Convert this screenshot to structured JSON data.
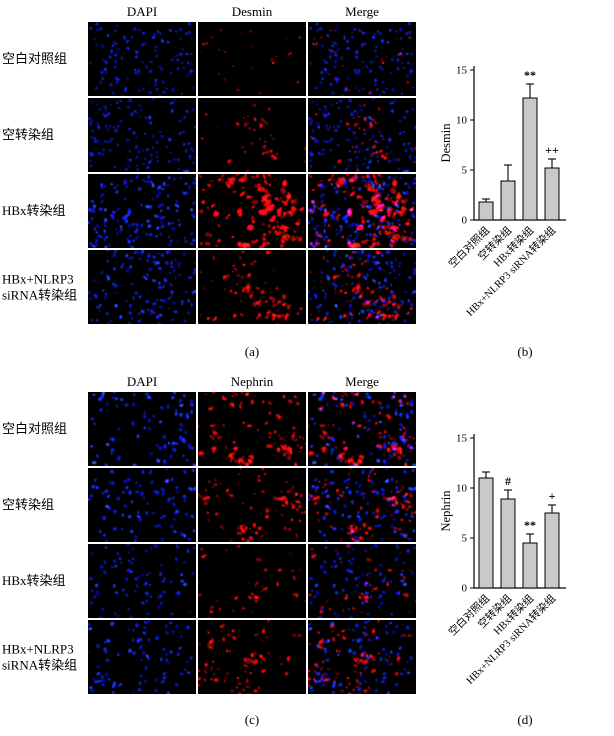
{
  "panels": {
    "a": {
      "label": "(a)",
      "columns": [
        "DAPI",
        "Desmin",
        "Merge"
      ],
      "rows": [
        "空白对照组",
        "空转染组",
        "HBx转染组",
        "HBx+NLRP3\nsiRNA转染组"
      ]
    },
    "b": {
      "label": "(b)"
    },
    "c": {
      "label": "(c)",
      "columns": [
        "DAPI",
        "Nephrin",
        "Merge"
      ],
      "rows": [
        "空白对照组",
        "空转染组",
        "HBx转染组",
        "HBx+NLRP3\nsiRNA转染组"
      ]
    },
    "d": {
      "label": "(d)"
    }
  },
  "colors": {
    "dapi_blue": "#2636d8",
    "stain_red": "#e01010",
    "bar_fill": "#c9c9c9",
    "axis": "#000000"
  },
  "chart_data": [
    {
      "type": "bar",
      "title": "",
      "ylabel": "Desmin",
      "xlabel": "",
      "categories": [
        "空白对照组",
        "空转染组",
        "HBx转染组",
        "HBx+NLRP3 siRNA转染组"
      ],
      "values": [
        1.8,
        3.9,
        12.2,
        5.2
      ],
      "errors": [
        0.3,
        1.6,
        1.4,
        0.9
      ],
      "annotations": [
        "",
        "",
        "**",
        "++"
      ],
      "ylim": [
        0,
        15
      ],
      "yticks": [
        0,
        5,
        10,
        15
      ],
      "grid": false,
      "legend_position": "none"
    },
    {
      "type": "bar",
      "title": "",
      "ylabel": "Nephrin",
      "xlabel": "",
      "categories": [
        "空白对照组",
        "空转染组",
        "HBx转染组",
        "HBx+NLRP3 siRNA转染组"
      ],
      "values": [
        11.0,
        8.9,
        4.5,
        7.5
      ],
      "errors": [
        0.6,
        0.9,
        0.9,
        0.8
      ],
      "annotations": [
        "",
        "#",
        "**",
        "+"
      ],
      "ylim": [
        0,
        15
      ],
      "yticks": [
        0,
        5,
        10,
        15
      ],
      "grid": false,
      "legend_position": "none"
    }
  ]
}
